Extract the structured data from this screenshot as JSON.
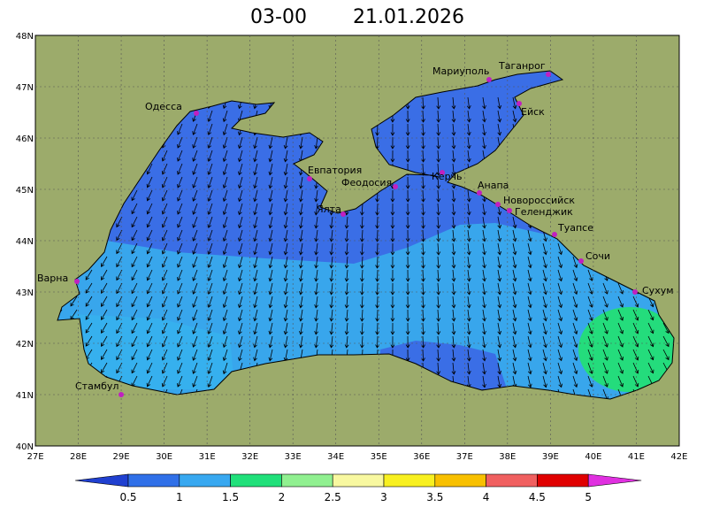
{
  "header": {
    "time": "03-00",
    "date": "21.01.2026"
  },
  "map": {
    "lon_labels": [
      "27E",
      "28E",
      "29E",
      "30E",
      "31E",
      "32E",
      "33E",
      "34E",
      "35E",
      "36E",
      "37E",
      "38E",
      "39E",
      "40E",
      "41E",
      "42E"
    ],
    "lat_labels": [
      "48N",
      "47N",
      "46N",
      "45N",
      "44N",
      "43N",
      "42N",
      "41N",
      "40N"
    ],
    "cities": [
      "Одесса",
      "Мариуполь",
      "Таганрог",
      "Ейск",
      "Евпатория",
      "Феодосия",
      "Керчь",
      "Ялта",
      "Анапа",
      "Новороссийск",
      "Геленджик",
      "Туапсе",
      "Сочи",
      "Сухум",
      "Варна",
      "Стамбул"
    ]
  },
  "colorbar": {
    "labels": [
      "0.5",
      "1",
      "1.5",
      "2",
      "2.5",
      "3",
      "3.5",
      "4",
      "4.5",
      "5"
    ]
  }
}
